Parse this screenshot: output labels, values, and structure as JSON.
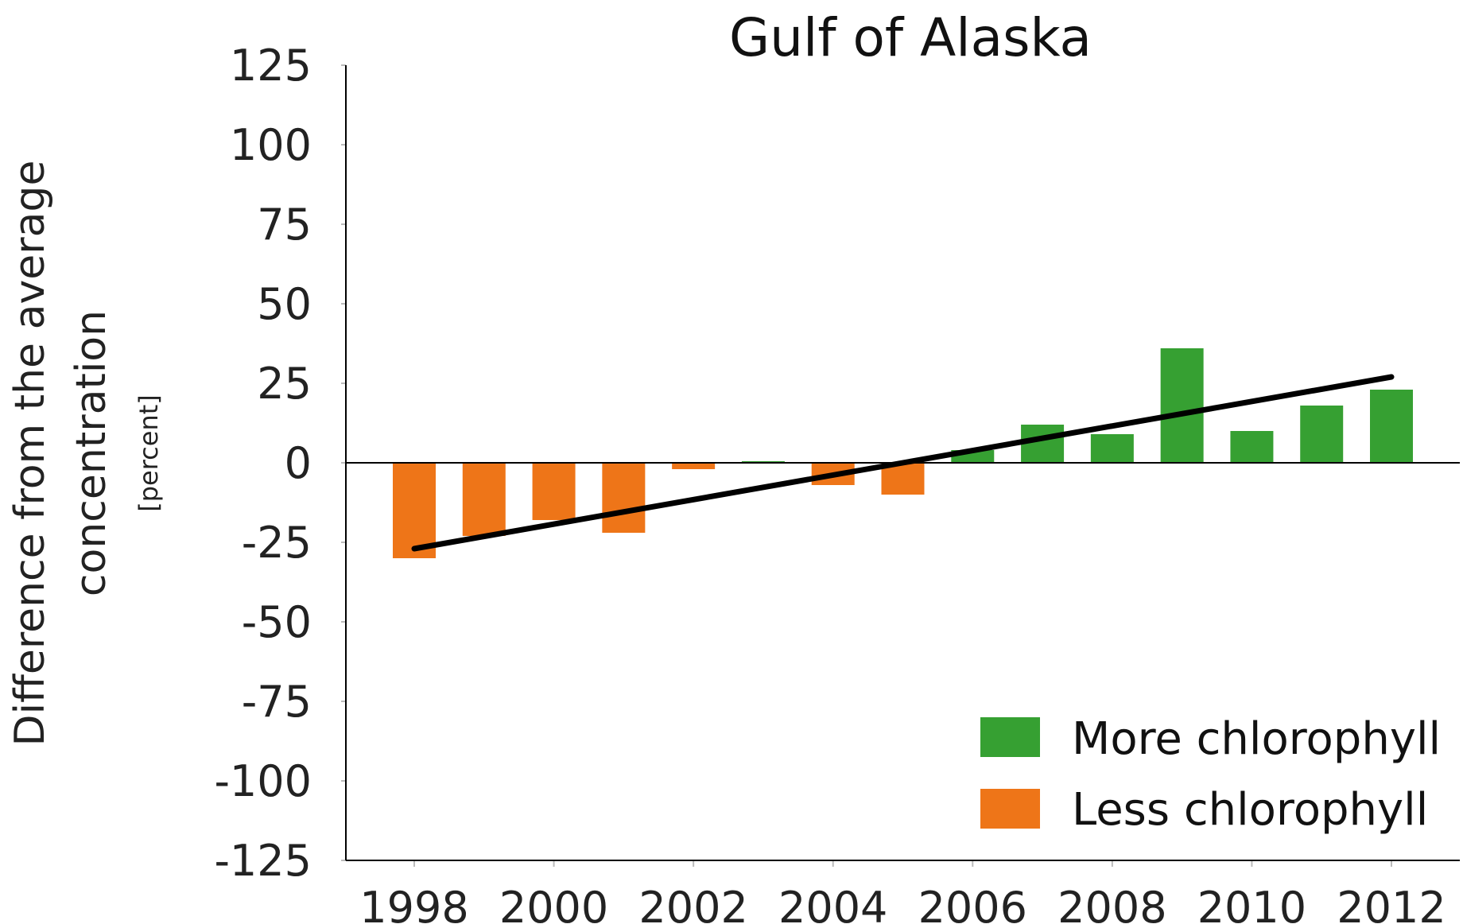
{
  "chart_data": {
    "type": "bar",
    "title": "Gulf of Alaska",
    "ylabel": "Difference from the average concentration",
    "ylabel_lines": [
      "Difference from the average",
      "concentration"
    ],
    "yunit": "[percent]",
    "xlabel": "",
    "ylim": [
      -125,
      125
    ],
    "yticks": [
      125,
      100,
      75,
      50,
      25,
      0,
      -25,
      -50,
      -75,
      -100,
      -125
    ],
    "xlim": [
      1998,
      2012
    ],
    "xticks": [
      1998,
      2000,
      2002,
      2004,
      2006,
      2008,
      2010,
      2012
    ],
    "x": [
      1998,
      1999,
      2000,
      2001,
      2002,
      2003,
      2004,
      2005,
      2006,
      2007,
      2008,
      2009,
      2010,
      2011,
      2012
    ],
    "values": [
      -30,
      -23,
      -18,
      -22,
      -2,
      0.5,
      -7,
      -10,
      4,
      12,
      9,
      36,
      10,
      18,
      23
    ],
    "trend_line": {
      "x": [
        1998,
        2012
      ],
      "y": [
        -27,
        27
      ]
    },
    "legend": [
      {
        "label": "More chlorophyll",
        "color": "#36a032"
      },
      {
        "label": "Less chlorophyll",
        "color": "#ee7518"
      }
    ],
    "legend_position": "bottom-right",
    "colors": {
      "positive": "#36a032",
      "negative": "#ee7518",
      "trend": "#000000",
      "axis": "#000000"
    }
  }
}
